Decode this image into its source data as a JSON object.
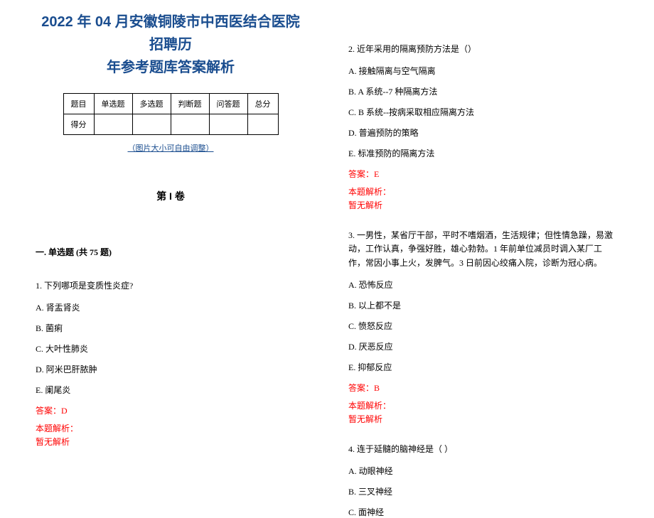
{
  "title_line1": "2022 年 04 月安徽铜陵市中西医结合医院招聘历",
  "title_line2": "年参考题库答案解析",
  "score_table": {
    "headers": [
      "题目",
      "单选题",
      "多选题",
      "判断题",
      "问答题",
      "总分"
    ],
    "row_label": "得分"
  },
  "adjust_note": "（图片大小可自由调整）",
  "volume_title": "第 I 卷",
  "section_title": "一. 单选题 (共 75 题)",
  "q1": {
    "stem": "1. 下列哪项是变质性炎症?",
    "options": {
      "a": "A. 肾盂肾炎",
      "b": "B. 菌痢",
      "c": "C. 大叶性肺炎",
      "d": "D. 阿米巴肝脓肿",
      "e": "E. 阑尾炎"
    },
    "answer": "答案：D",
    "analysis_label": "本题解析：",
    "analysis_content": "暂无解析"
  },
  "q2": {
    "stem": "2. 近年采用的隔离预防方法是（）",
    "options": {
      "a": "A. 接触隔离与空气隔离",
      "b": "B. A 系统--7 种隔离方法",
      "c": "C. B 系统--按病采取相应隔离方法",
      "d": "D. 普遍预防的策略",
      "e": "E. 标准预防的隔离方法"
    },
    "answer": "答案：E",
    "analysis_label": "本题解析：",
    "analysis_content": "暂无解析"
  },
  "q3": {
    "stem": "3. 一男性，某省厅干部，平时不嗜烟酒，生活规律；但性情急躁，易激动，工作认真，争强好胜，雄心勃勃。1 年前单位减员时调入某厂工作，常因小事上火，发脾气。3 日前因心绞痛入院，诊断为冠心病。",
    "options": {
      "a": "A. 恐怖反应",
      "b": "B. 以上都不是",
      "c": "C. 愤怒反应",
      "d": "D. 厌恶反应",
      "e": "E. 抑郁反应"
    },
    "answer": "答案：B",
    "analysis_label": "本题解析：",
    "analysis_content": "暂无解析"
  },
  "q4": {
    "stem": "4. 连于延髓的脑神经是（ ）",
    "options": {
      "a": "A. 动眼神经",
      "b": "B. 三叉神经",
      "c": "C. 面神经"
    }
  },
  "colors": {
    "title_color": "#1a4d8f",
    "link_color": "#1a4d8f",
    "text_color": "#000000",
    "answer_color": "#ff0000",
    "background": "#ffffff",
    "border_color": "#000000"
  },
  "typography": {
    "title_fontsize": 20,
    "body_fontsize": 12,
    "small_fontsize": 11,
    "volume_fontsize": 14
  }
}
